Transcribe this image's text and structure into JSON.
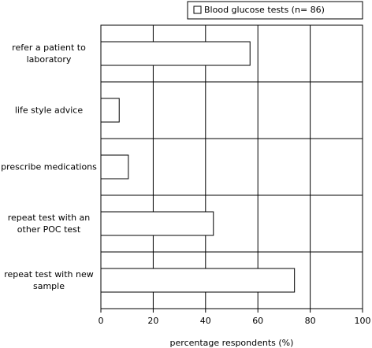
{
  "chart_data": {
    "type": "bar",
    "orientation": "horizontal",
    "categories": [
      "refer a patient to\nlaboratory",
      "life style advice",
      "prescribe medications",
      "repeat test with an\nother POC test",
      "repeat test with new\nsample"
    ],
    "series": [
      {
        "name": "Blood glucose tests (n= 86)",
        "color": "#ffffff",
        "values": [
          57,
          7,
          10.5,
          43,
          74
        ]
      }
    ],
    "xlabel": "percentage respondents (%)",
    "xlim": [
      0,
      100
    ],
    "xticks": [
      0,
      20,
      40,
      60,
      80,
      100
    ],
    "grid": true,
    "legend": "top-right"
  }
}
